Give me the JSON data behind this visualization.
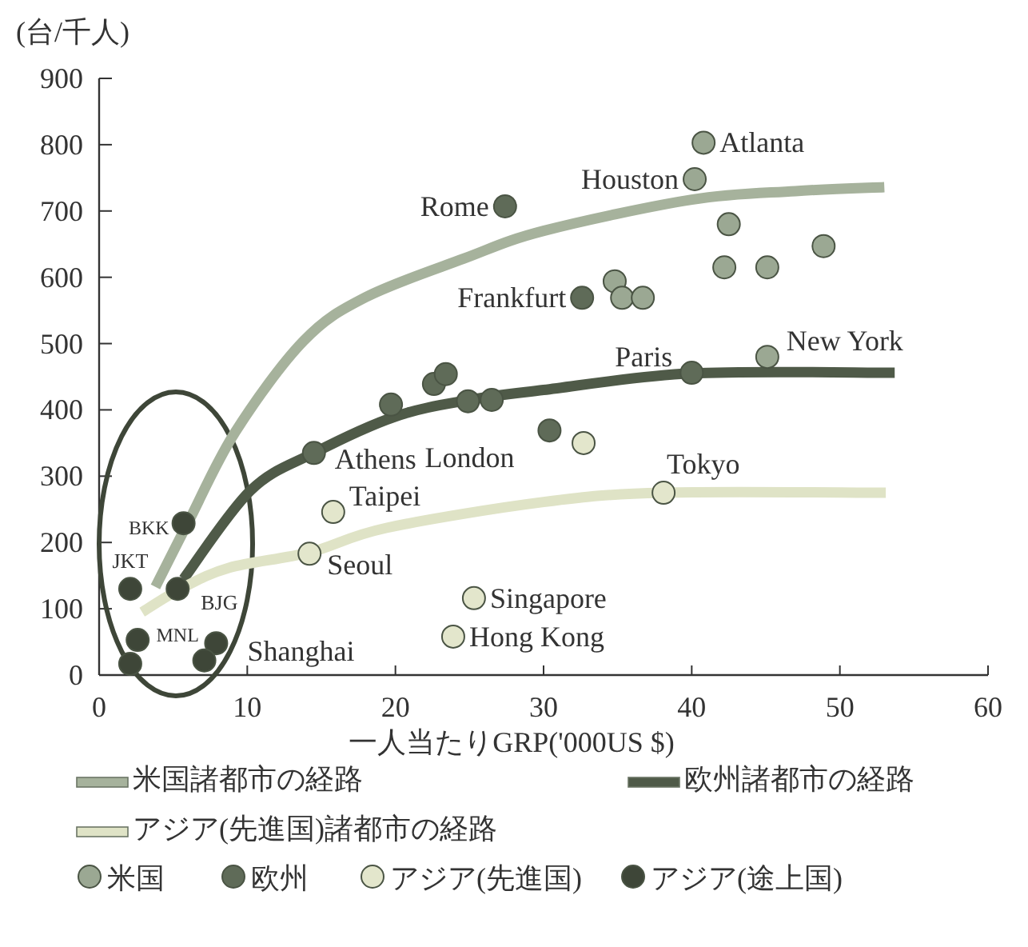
{
  "chart_data": {
    "type": "scatter",
    "xlabel": "一人当たりGRP('000US $)",
    "ylabel": "(台/千人)",
    "xlim": [
      0,
      60
    ],
    "xticks": [
      0,
      10,
      20,
      30,
      40,
      50,
      60
    ],
    "ylim": [
      0,
      900
    ],
    "yticks": [
      0,
      100,
      200,
      300,
      400,
      500,
      600,
      700,
      800,
      900
    ],
    "grid": false,
    "legend": "bottom",
    "series": [
      {
        "name": "米国諸都市の経路",
        "type": "line",
        "marker": "none",
        "color": "#a6b29c",
        "x": [
          3.8,
          6,
          9.2,
          13.8,
          18,
          24.6,
          30,
          40,
          47,
          53
        ],
        "values": [
          133,
          230,
          367,
          504,
          570,
          628,
          670,
          717,
          730,
          736
        ]
      },
      {
        "name": "欧州諸都市の経路",
        "type": "line",
        "marker": "none",
        "color": "#4f5a48",
        "x": [
          5.7,
          10.2,
          14.5,
          20,
          25,
          30,
          40,
          53.7
        ],
        "values": [
          145,
          278,
          335,
          390,
          415,
          430,
          455,
          456
        ]
      },
      {
        "name": "アジア(先進国)諸都市の経路",
        "type": "line",
        "marker": "none",
        "color": "#dfe3c6",
        "x": [
          2.9,
          5.5,
          8.8,
          14.2,
          19.4,
          30,
          38.1,
          53.1
        ],
        "values": [
          95,
          130,
          162,
          185,
          222,
          261,
          275,
          275
        ]
      },
      {
        "name": "米国",
        "marker": "circle",
        "color": "#9ba893",
        "x": [
          40.8,
          40.2,
          42.5,
          48.9,
          42.2,
          45.1,
          34.8,
          35.3,
          36.7,
          45.1
        ],
        "values": [
          803,
          748,
          680,
          647,
          615,
          615,
          594,
          569,
          569,
          480
        ]
      },
      {
        "name": "欧州",
        "marker": "circle",
        "color": "#5f6b58",
        "x": [
          27.4,
          32.6,
          40.0,
          30.4,
          19.7,
          22.6,
          23.4,
          24.9,
          26.5,
          14.5
        ],
        "values": [
          707,
          569,
          456,
          369,
          408,
          439,
          454,
          413,
          415,
          335
        ]
      },
      {
        "name": "アジア(先進国)",
        "marker": "circle",
        "color": "#e3e6cc",
        "x": [
          32.7,
          38.1,
          25.3,
          23.9,
          15.8,
          14.2
        ],
        "values": [
          350,
          275,
          116,
          58,
          246,
          183
        ]
      },
      {
        "name": "アジア(途上国)",
        "marker": "circle",
        "color": "#3e4638",
        "x": [
          5.7,
          2.1,
          5.3,
          2.6,
          2.1,
          7.9,
          7.1
        ],
        "values": [
          229,
          130,
          130,
          53,
          17,
          48,
          22
        ]
      }
    ],
    "annotations": [
      {
        "text": "Atlanta",
        "x": 40.8,
        "y": 803
      },
      {
        "text": "Houston",
        "x": 40.2,
        "y": 748
      },
      {
        "text": "Rome",
        "x": 27.4,
        "y": 707
      },
      {
        "text": "Frankfurt",
        "x": 32.6,
        "y": 569
      },
      {
        "text": "Paris",
        "x": 40.0,
        "y": 456
      },
      {
        "text": "New York",
        "x": 45.1,
        "y": 480
      },
      {
        "text": "London",
        "x": 30.4,
        "y": 369
      },
      {
        "text": "Athens",
        "x": 14.5,
        "y": 335
      },
      {
        "text": "Taipei",
        "x": 15.8,
        "y": 246
      },
      {
        "text": "Seoul",
        "x": 14.2,
        "y": 183
      },
      {
        "text": "Tokyo",
        "x": 38.1,
        "y": 275
      },
      {
        "text": "Singapore",
        "x": 25.3,
        "y": 116
      },
      {
        "text": "Hong Kong",
        "x": 23.9,
        "y": 58
      },
      {
        "text": "BKK",
        "x": 5.7,
        "y": 229
      },
      {
        "text": "JKT",
        "x": 2.1,
        "y": 130
      },
      {
        "text": "MNL",
        "x": 5.3,
        "y": 130
      },
      {
        "text": "BJG",
        "x": 7.9,
        "y": 48
      },
      {
        "text": "Shanghai",
        "x": 7.1,
        "y": 22
      }
    ]
  }
}
